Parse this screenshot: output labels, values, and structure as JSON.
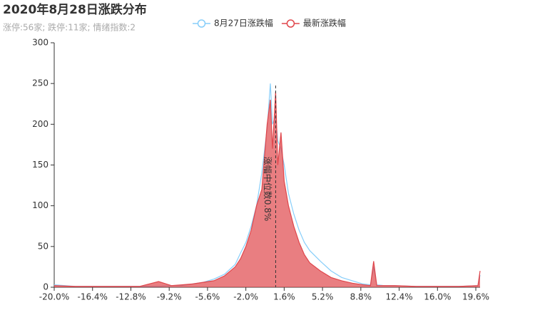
{
  "chart_data": {
    "type": "area-line",
    "title": "2020年8月28日涨跌分布",
    "subtitle": "涨停:56家; 跌停:11家; 情绪指数:2",
    "x": [
      -20,
      -18,
      -16,
      -14,
      -12,
      -10.2,
      -9,
      -8,
      -7,
      -6,
      -5,
      -4,
      -3,
      -2.5,
      -2,
      -1.5,
      -1,
      -0.5,
      0,
      0.3,
      0.5,
      0.8,
      1.0,
      1.3,
      1.6,
      2,
      2.5,
      3,
      3.5,
      4,
      5,
      6,
      7,
      8,
      9,
      9.7,
      10,
      10.3,
      11,
      12,
      14,
      16,
      18,
      19.8,
      20
    ],
    "series": [
      {
        "name": "8月27日涨跌幅",
        "color": "#87cefa",
        "fill": false,
        "values": [
          3,
          1,
          1,
          1,
          1,
          1,
          2,
          2,
          4,
          6,
          10,
          16,
          28,
          42,
          55,
          75,
          100,
          140,
          195,
          250,
          200,
          210,
          180,
          170,
          150,
          115,
          90,
          70,
          55,
          45,
          32,
          20,
          12,
          8,
          4,
          3,
          25,
          3,
          2,
          2,
          1,
          1,
          1,
          2,
          15
        ]
      },
      {
        "name": "最新涨跌幅",
        "color": "#e0474c",
        "fill": true,
        "values": [
          2,
          1,
          1,
          1,
          1,
          7,
          2,
          3,
          4,
          6,
          8,
          14,
          25,
          35,
          50,
          70,
          100,
          120,
          200,
          230,
          170,
          240,
          150,
          190,
          130,
          100,
          75,
          55,
          40,
          30,
          20,
          12,
          8,
          5,
          3,
          2,
          32,
          2,
          2,
          2,
          1,
          1,
          1,
          2,
          20
        ]
      }
    ],
    "median": 0.8,
    "median_label": "涨幅中位数0.8%",
    "xlim": [
      -20,
      20
    ],
    "xticks": [
      {
        "value": -20,
        "label": "-20.0%"
      },
      {
        "value": -16.4,
        "label": "-16.4%"
      },
      {
        "value": -12.8,
        "label": "-12.8%"
      },
      {
        "value": -9.2,
        "label": "-9.2%"
      },
      {
        "value": -5.6,
        "label": "-5.6%"
      },
      {
        "value": -2,
        "label": "-2.0%"
      },
      {
        "value": 1.6,
        "label": "1.6%"
      },
      {
        "value": 5.2,
        "label": "5.2%"
      },
      {
        "value": 8.8,
        "label": "8.8%"
      },
      {
        "value": 12.4,
        "label": "12.4%"
      },
      {
        "value": 16,
        "label": "16.0%"
      },
      {
        "value": 19.6,
        "label": "19.6%"
      }
    ],
    "ylim": [
      0,
      300
    ],
    "yticks": [
      0,
      50,
      100,
      150,
      200,
      250,
      300
    ],
    "grid": false
  }
}
